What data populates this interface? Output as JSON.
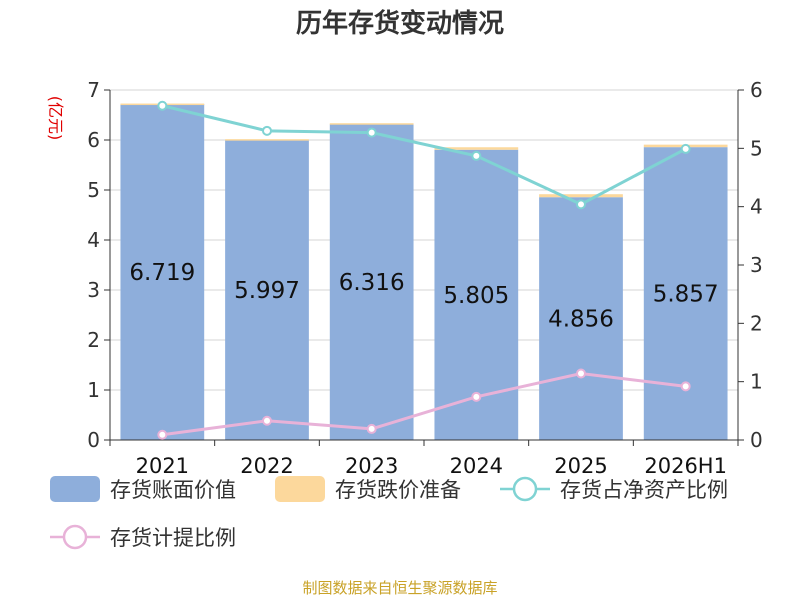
{
  "chart_data": {
    "type": "bar",
    "title": "历年存货变动情况",
    "unit_label": "(亿元)",
    "categories": [
      "2021",
      "2022",
      "2023",
      "2024",
      "2025",
      "2026H1"
    ],
    "left_axis": {
      "min": 0,
      "max": 7,
      "ticks": [
        "0",
        "1",
        "2",
        "3",
        "4",
        "5",
        "6",
        "7"
      ]
    },
    "right_axis": {
      "min": 0,
      "max": 6,
      "ticks": [
        "0",
        "1",
        "2",
        "3",
        "4",
        "5",
        "6"
      ]
    },
    "grid": true,
    "legend_position": "bottom",
    "series": [
      {
        "name": "存货账面价值",
        "kind": "bar",
        "axis": "left",
        "color": "#8eaedb",
        "values": [
          6.719,
          5.997,
          6.316,
          5.805,
          4.856,
          5.857
        ],
        "labels": [
          "6.719",
          "5.997",
          "6.316",
          "5.805",
          "4.856",
          "5.857"
        ]
      },
      {
        "name": "存货跌价准备",
        "kind": "bar-stack",
        "axis": "left",
        "color": "#fcd89c",
        "values": [
          0.01,
          0.02,
          0.02,
          0.05,
          0.06,
          0.05
        ]
      },
      {
        "name": "存货占净资产比例",
        "kind": "line",
        "axis": "right",
        "color": "#7fd3d3",
        "values": [
          5.73,
          5.3,
          5.27,
          4.87,
          4.04,
          4.99
        ]
      },
      {
        "name": "存货计提比例",
        "kind": "line",
        "axis": "right",
        "color": "#e8b2d8",
        "values": [
          0.09,
          0.33,
          0.19,
          0.74,
          1.14,
          0.92
        ]
      }
    ],
    "source": "制图数据来自恒生聚源数据库"
  }
}
